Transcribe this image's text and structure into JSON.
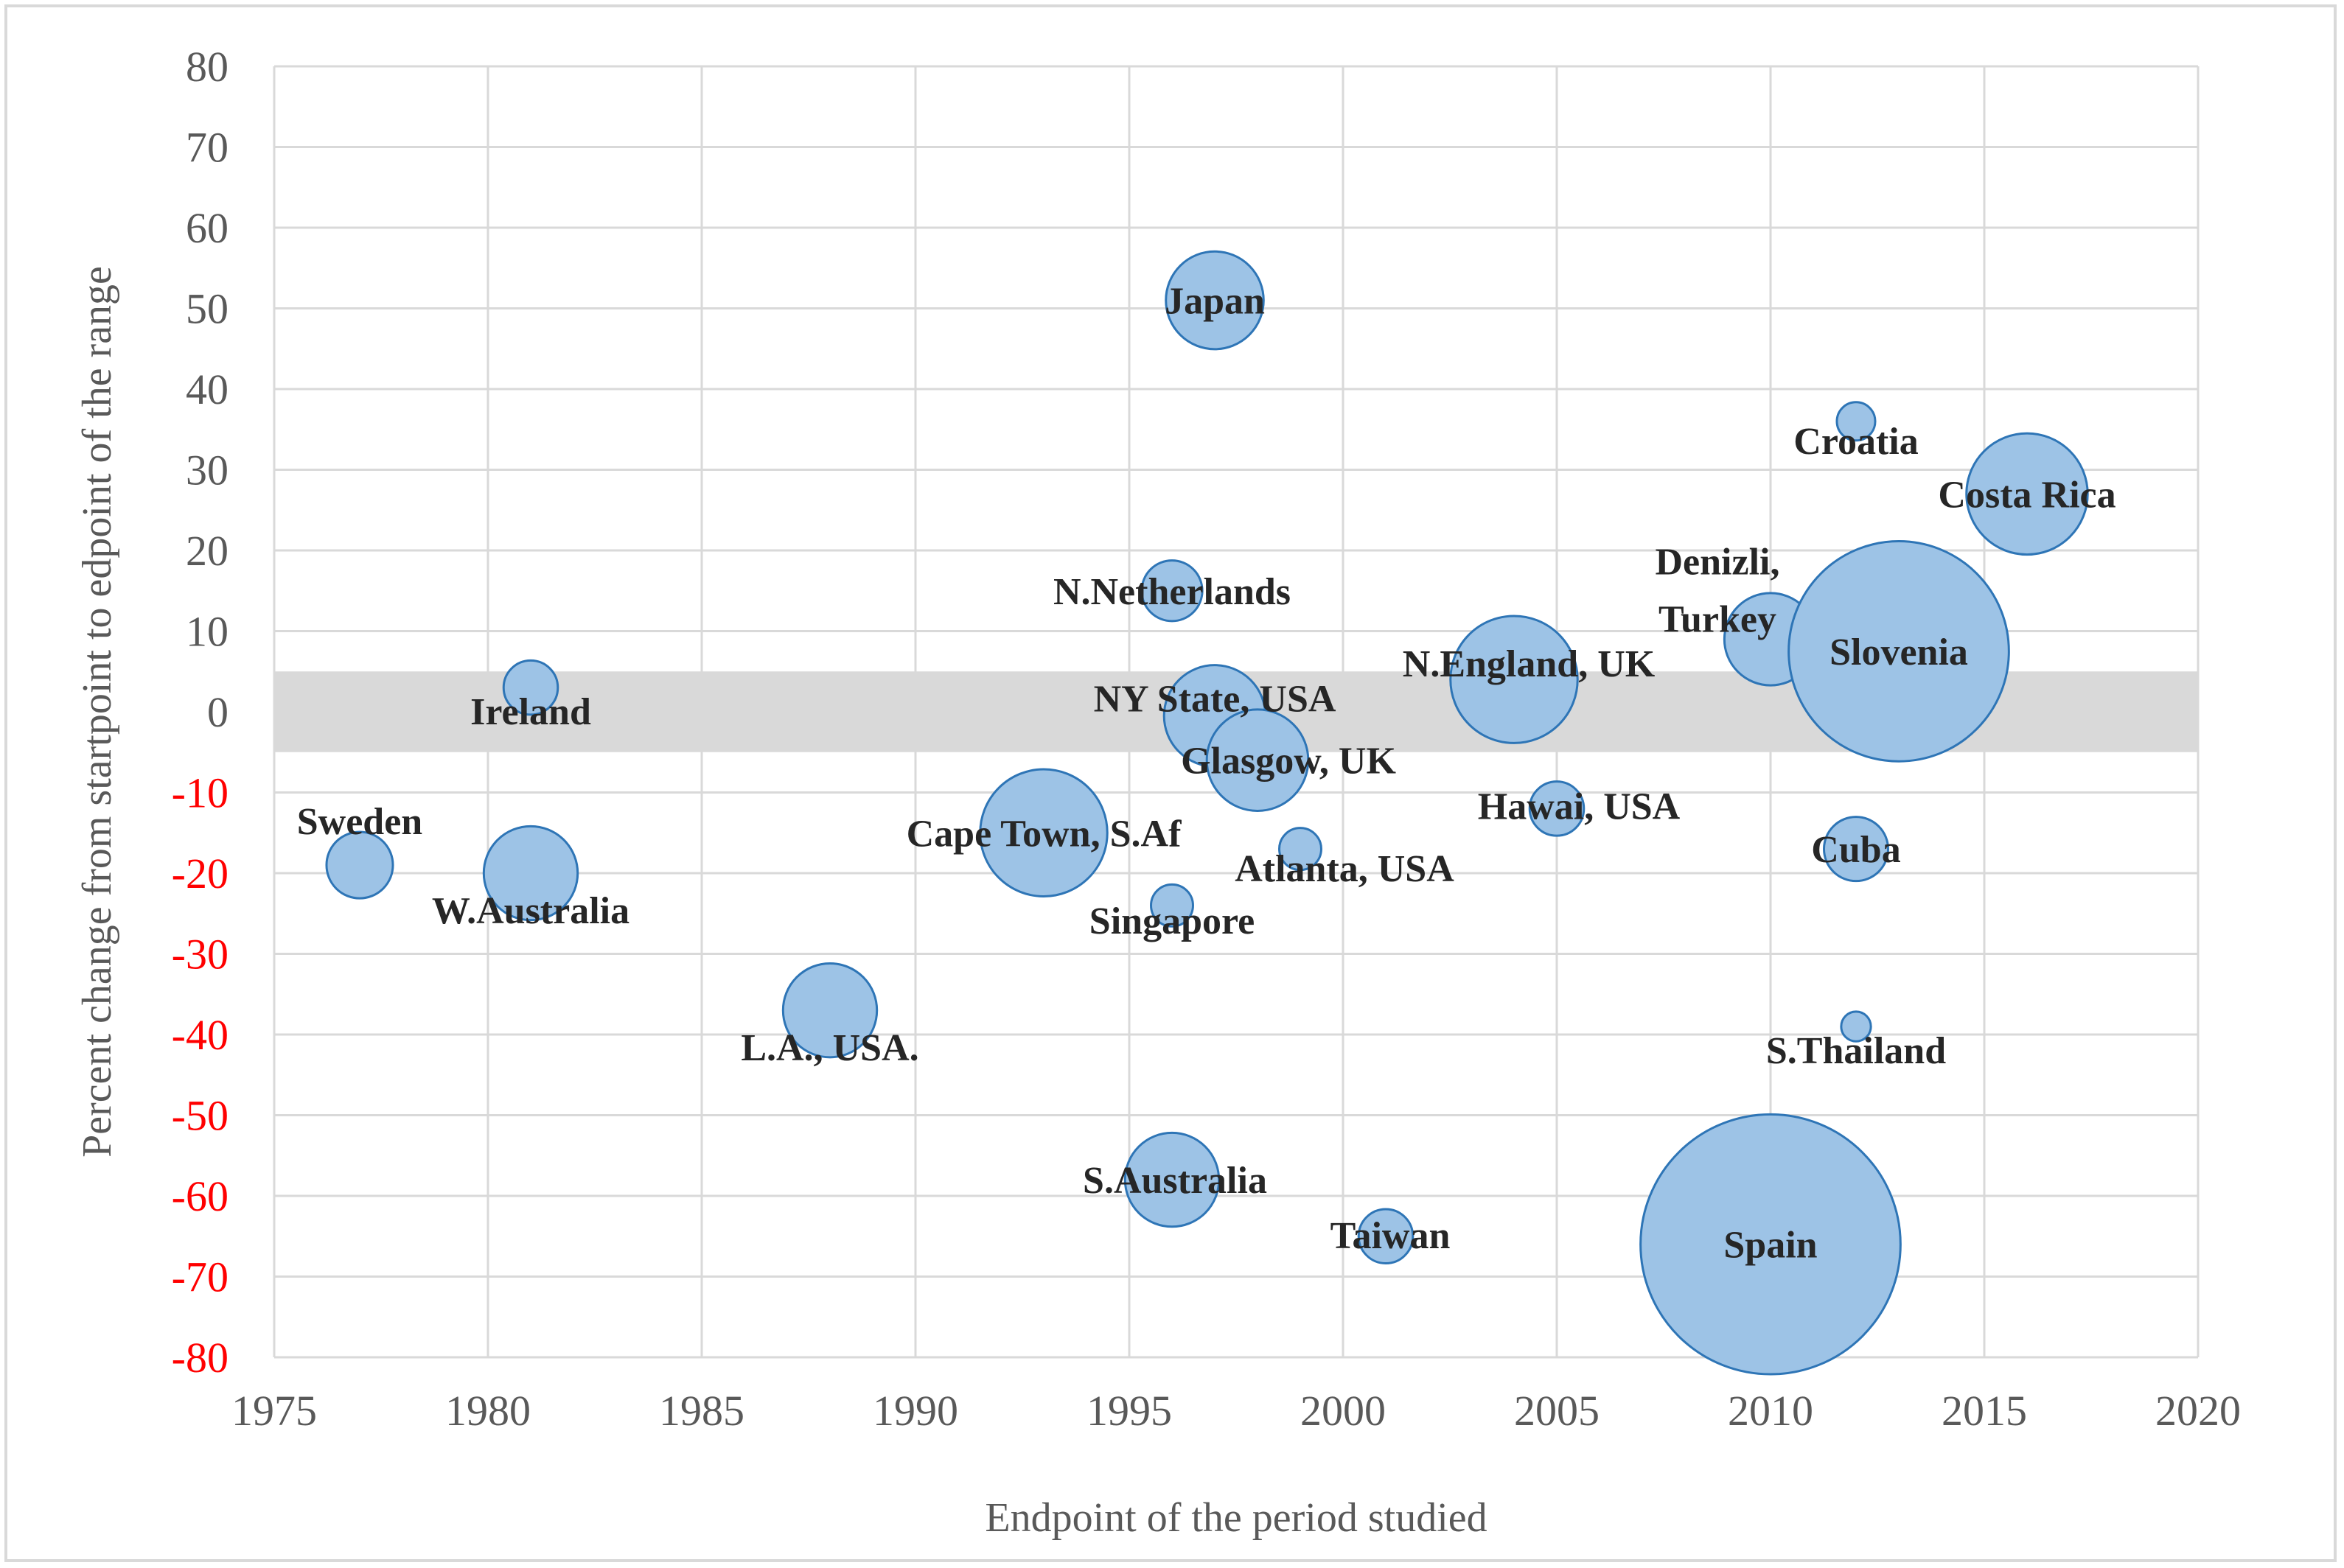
{
  "chart_data": {
    "type": "bubble",
    "title": "",
    "xlabel": "Endpoint of the period studied",
    "ylabel": "Percent change from startpoint to edpoint of the range",
    "xlim": [
      1975,
      2020
    ],
    "ylim": [
      -80,
      80
    ],
    "x_ticks": [
      "1975",
      "1980",
      "1985",
      "1990",
      "1995",
      "2000",
      "2005",
      "2010",
      "2015",
      "2020"
    ],
    "y_ticks": [
      "80",
      "70",
      "60",
      "50",
      "40",
      "30",
      "20",
      "10",
      "0",
      "-10",
      "-20",
      "-30",
      "-40",
      "-50",
      "-60",
      "-70",
      "-80"
    ],
    "negative_tick_color": "#ff0000",
    "shaded_band": {
      "y_from": -5,
      "y_to": 5,
      "color": "#d9d9d9"
    },
    "bubble_fill": "#9dc3e6",
    "bubble_stroke": "#2e75b6",
    "points": [
      {
        "label": "Japan",
        "x": 1997,
        "y": 51,
        "size": 6.5
      },
      {
        "label": "Croatia",
        "x": 2012,
        "y": 36,
        "size": 1
      },
      {
        "label": "Costa Rica",
        "x": 2016,
        "y": 27,
        "size": 10
      },
      {
        "label": "N.Netherlands",
        "x": 1996,
        "y": 15,
        "size": 2.5
      },
      {
        "label": "Denizli,",
        "x": 2010,
        "y": 9,
        "size": 5.8
      },
      {
        "label": "Turkey",
        "x": 2010,
        "y": 9,
        "size": 0
      },
      {
        "label": "Slovenia",
        "x": 2013,
        "y": 7.5,
        "size": 33
      },
      {
        "label": "Ireland",
        "x": 1981,
        "y": 3,
        "size": 2
      },
      {
        "label": "N.England, UK",
        "x": 2004,
        "y": 4,
        "size": 11
      },
      {
        "label": "NY State, USA",
        "x": 1997,
        "y": -0.5,
        "size": 7
      },
      {
        "label": "Glasgow, UK",
        "x": 1998,
        "y": -6,
        "size": 7
      },
      {
        "label": "Hawai, USA",
        "x": 2005,
        "y": -12,
        "size": 2
      },
      {
        "label": "Cape Town, S.Af",
        "x": 1993,
        "y": -15,
        "size": 11
      },
      {
        "label": "Cuba",
        "x": 2012,
        "y": -17,
        "size": 2.8
      },
      {
        "label": "Atlanta, USA",
        "x": 1999,
        "y": -17,
        "size": 1.2
      },
      {
        "label": "Sweden",
        "x": 1977,
        "y": -19,
        "size": 3
      },
      {
        "label": "W.Australia",
        "x": 1981,
        "y": -20,
        "size": 6
      },
      {
        "label": "Singapore",
        "x": 1996,
        "y": -24,
        "size": 1.2
      },
      {
        "label": "L.A., USA.",
        "x": 1988,
        "y": -37,
        "size": 6
      },
      {
        "label": "S.Thailand",
        "x": 2012,
        "y": -39,
        "size": 0.6
      },
      {
        "label": "S.Australia",
        "x": 1996,
        "y": -58,
        "size": 6
      },
      {
        "label": "Taiwan",
        "x": 2001,
        "y": -65,
        "size": 2
      },
      {
        "label": "Spain",
        "x": 2010,
        "y": -66,
        "size": 46
      }
    ]
  }
}
